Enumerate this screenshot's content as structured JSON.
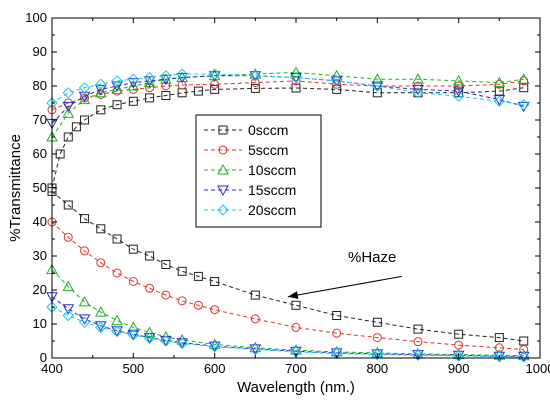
{
  "chart_data": {
    "type": "line",
    "title": "",
    "xlabel": "Wavelength (nm.)",
    "ylabel": "%Transmittance",
    "xlim": [
      400,
      1000
    ],
    "ylim": [
      0,
      100
    ],
    "x_ticks": [
      400,
      500,
      600,
      700,
      800,
      900,
      1000
    ],
    "y_ticks": [
      0,
      10,
      20,
      30,
      40,
      50,
      60,
      70,
      80,
      90,
      100
    ],
    "grid": false,
    "legend_position": "center-right",
    "annotation": {
      "text": "%Haze",
      "arrow_from": [
        830,
        24
      ],
      "arrow_to": [
        690,
        18
      ]
    },
    "series": [
      {
        "name": "0sccm",
        "color": "#222222",
        "dash": "4,3",
        "marker": "square",
        "transmittance": {
          "x": [
            400,
            410,
            420,
            430,
            440,
            460,
            480,
            500,
            520,
            540,
            560,
            580,
            600,
            650,
            700,
            750,
            800,
            850,
            900,
            950,
            980
          ],
          "y": [
            50,
            60,
            65,
            68,
            70,
            73,
            74.5,
            75.5,
            76.5,
            77.2,
            78,
            78.5,
            79,
            79.3,
            79.4,
            79,
            78,
            78,
            78,
            78.5,
            79.5
          ]
        },
        "haze": {
          "x": [
            400,
            420,
            440,
            460,
            480,
            500,
            520,
            540,
            560,
            580,
            600,
            650,
            700,
            750,
            800,
            850,
            900,
            950,
            980
          ],
          "y": [
            49,
            45,
            41,
            38,
            35,
            32,
            30,
            27.5,
            25.5,
            24,
            22.5,
            18.5,
            15.5,
            12.5,
            10.5,
            8.5,
            7,
            6,
            5
          ]
        }
      },
      {
        "name": "5sccm",
        "color": "#e0332c",
        "dash": "4,3",
        "marker": "circle",
        "transmittance": {
          "x": [
            400,
            420,
            440,
            460,
            480,
            500,
            520,
            540,
            560,
            600,
            650,
            700,
            750,
            800,
            850,
            900,
            950,
            980
          ],
          "y": [
            73,
            75,
            76.5,
            77.5,
            78.5,
            79,
            79.5,
            80,
            80.3,
            80.5,
            81,
            81.5,
            80.5,
            80,
            80,
            80,
            80.5,
            81.5
          ]
        },
        "haze": {
          "x": [
            400,
            420,
            440,
            460,
            480,
            500,
            520,
            540,
            560,
            580,
            600,
            650,
            700,
            750,
            800,
            850,
            900,
            950,
            980
          ],
          "y": [
            40,
            35.5,
            31.5,
            28,
            25,
            22.5,
            20.5,
            18.5,
            16.8,
            15.5,
            14.2,
            11.5,
            9,
            7.3,
            6,
            4.8,
            3.8,
            3,
            2.5
          ]
        }
      },
      {
        "name": "10sccm",
        "color": "#1fb31f",
        "dash": "4,3",
        "marker": "triangle-up",
        "transmittance": {
          "x": [
            400,
            420,
            440,
            460,
            480,
            500,
            520,
            540,
            560,
            600,
            650,
            700,
            750,
            800,
            850,
            900,
            950,
            980
          ],
          "y": [
            65,
            72,
            76,
            78,
            79,
            80,
            81,
            82,
            82.5,
            83,
            83.5,
            84,
            83,
            82,
            82,
            81.5,
            81,
            82
          ]
        },
        "haze": {
          "x": [
            400,
            420,
            440,
            460,
            480,
            500,
            520,
            540,
            560,
            600,
            650,
            700,
            750,
            800,
            850,
            900,
            950,
            980
          ],
          "y": [
            26,
            21,
            16.5,
            13.5,
            11,
            9,
            7.5,
            6.2,
            5.3,
            4,
            3,
            2.3,
            1.8,
            1.5,
            1.2,
            1,
            0.8,
            0.7
          ]
        }
      },
      {
        "name": "15sccm",
        "color": "#2a2ad4",
        "dash": "4,3",
        "marker": "triangle-down",
        "transmittance": {
          "x": [
            400,
            420,
            440,
            460,
            480,
            500,
            520,
            540,
            560,
            600,
            650,
            700,
            750,
            800,
            850,
            900,
            950,
            980
          ],
          "y": [
            69,
            74,
            77,
            79,
            80,
            81,
            81.5,
            82,
            82.5,
            83,
            83,
            82.5,
            81.5,
            80,
            79,
            78.5,
            76,
            74
          ]
        },
        "haze": {
          "x": [
            400,
            420,
            440,
            460,
            480,
            500,
            520,
            540,
            560,
            600,
            650,
            700,
            750,
            800,
            850,
            900,
            950,
            980
          ],
          "y": [
            18,
            14.5,
            11.5,
            9.5,
            8,
            7,
            6,
            5.2,
            4.5,
            3.5,
            2.7,
            2,
            1.5,
            1.2,
            1,
            0.8,
            0.5,
            0.5
          ]
        }
      },
      {
        "name": "20sccm",
        "color": "#17c9e8",
        "dash": "4,3",
        "marker": "diamond",
        "transmittance": {
          "x": [
            400,
            420,
            440,
            460,
            480,
            500,
            520,
            540,
            560,
            600,
            650,
            700,
            750,
            800,
            850,
            900,
            950,
            980
          ],
          "y": [
            75,
            78,
            79.5,
            80.5,
            81.5,
            82,
            82.5,
            83,
            83.5,
            83.5,
            83,
            82.5,
            81.5,
            80,
            78,
            77,
            75.5,
            74.5
          ]
        },
        "haze": {
          "x": [
            400,
            420,
            440,
            460,
            480,
            500,
            520,
            540,
            560,
            600,
            650,
            700,
            750,
            800,
            850,
            900,
            950,
            980
          ],
          "y": [
            15,
            12.5,
            10.5,
            9,
            7.8,
            6.8,
            5.8,
            5,
            4.3,
            3.3,
            2.5,
            1.8,
            1.3,
            1,
            0.8,
            0.6,
            0.4,
            0.3
          ]
        }
      }
    ]
  }
}
